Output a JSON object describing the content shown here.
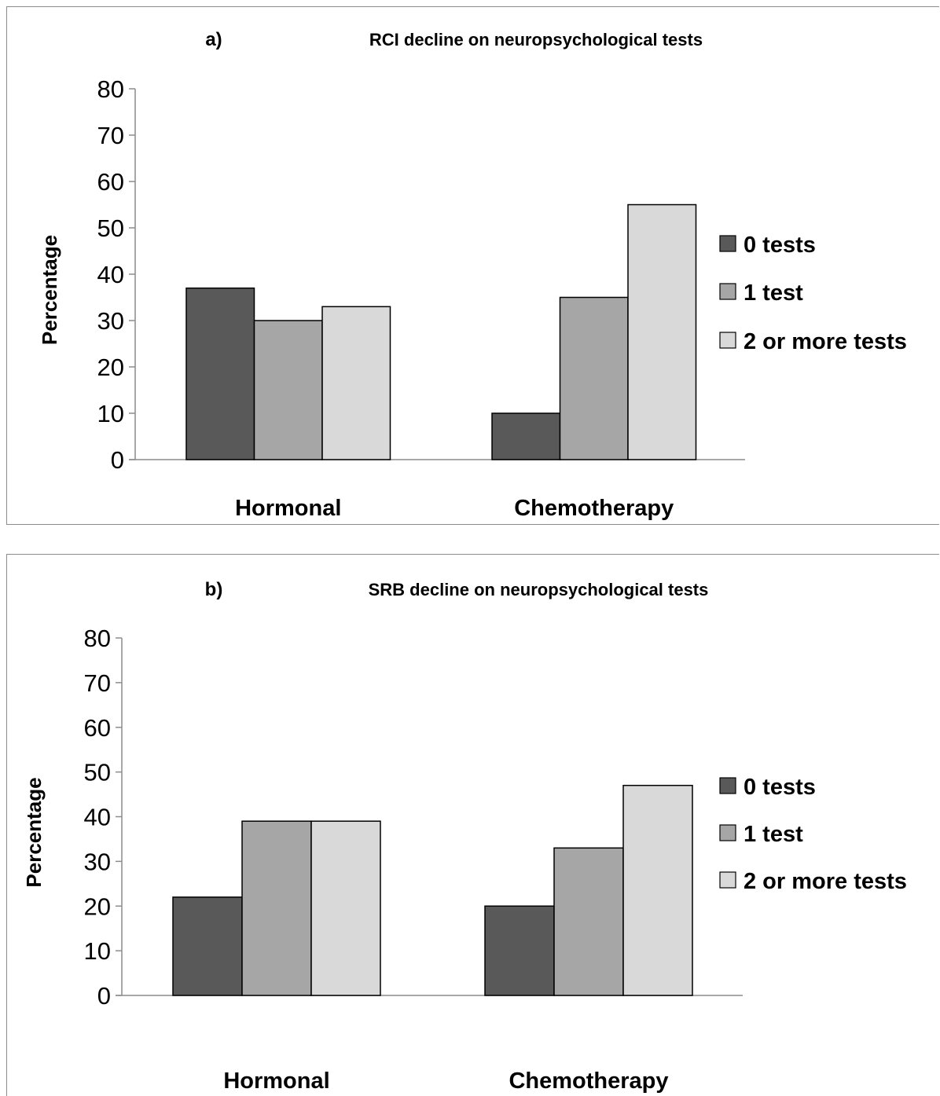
{
  "chart_data": [
    {
      "type": "bar",
      "panel_label": "a)",
      "title": "RCI decline on neuropsychological tests",
      "ylabel": "Percentage",
      "xlabel": "",
      "ylim": [
        0,
        80
      ],
      "yticks": [
        "0",
        "10",
        "20",
        "30",
        "40",
        "50",
        "60",
        "70",
        "80"
      ],
      "categories": [
        "Hormonal",
        "Chemotherapy"
      ],
      "series": [
        {
          "name": "0 tests",
          "values": [
            37,
            10
          ],
          "color": "#595959"
        },
        {
          "name": "1 test",
          "values": [
            30,
            35
          ],
          "color": "#a6a6a6"
        },
        {
          "name": "2 or more tests",
          "values": [
            33,
            55
          ],
          "color": "#d9d9d9"
        }
      ],
      "legend_position": "right",
      "grid": false
    },
    {
      "type": "bar",
      "panel_label": "b)",
      "title": "SRB decline on neuropsychological tests",
      "ylabel": "Percentage",
      "xlabel": "",
      "ylim": [
        0,
        80
      ],
      "yticks": [
        "0",
        "10",
        "20",
        "30",
        "40",
        "50",
        "60",
        "70",
        "80"
      ],
      "categories": [
        "Hormonal",
        "Chemotherapy"
      ],
      "series": [
        {
          "name": "0 tests",
          "values": [
            22,
            20
          ],
          "color": "#595959"
        },
        {
          "name": "1 test",
          "values": [
            39,
            33
          ],
          "color": "#a6a6a6"
        },
        {
          "name": "2 or more tests",
          "values": [
            39,
            47
          ],
          "color": "#d9d9d9"
        }
      ],
      "legend_position": "right",
      "grid": false
    }
  ]
}
